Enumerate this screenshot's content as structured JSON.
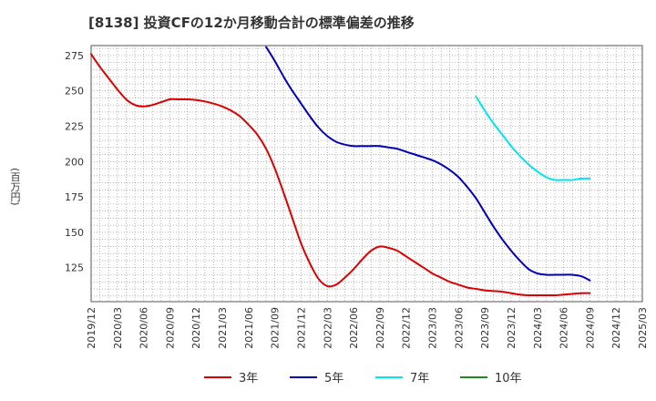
{
  "header": {
    "title": "[8138]  投資CFの12か月移動合計の標準偏差の推移"
  },
  "chart_data": {
    "type": "line",
    "title": "[8138]  投資CFの12か月移動合計の標準偏差の推移",
    "ylabel": "(百万円)",
    "xlabel": "",
    "ylim": [
      101,
      282
    ],
    "yticks": [
      125,
      150,
      175,
      200,
      225,
      250,
      275
    ],
    "x_ticks": [
      "2019/12",
      "2020/03",
      "2020/06",
      "2020/09",
      "2020/12",
      "2021/03",
      "2021/06",
      "2021/09",
      "2021/12",
      "2022/03",
      "2022/06",
      "2022/09",
      "2022/12",
      "2023/03",
      "2023/06",
      "2023/09",
      "2023/12",
      "2024/03",
      "2024/06",
      "2024/09",
      "2024/12",
      "2025/03"
    ],
    "grid": true,
    "legend_position": "bottom",
    "series": [
      {
        "name": "3年",
        "color": "#dd0000",
        "points": [
          [
            "2019/12",
            276
          ],
          [
            "2020/01",
            267
          ],
          [
            "2020/02",
            259
          ],
          [
            "2020/03",
            251
          ],
          [
            "2020/04",
            244
          ],
          [
            "2020/05",
            240
          ],
          [
            "2020/06",
            239
          ],
          [
            "2020/07",
            240
          ],
          [
            "2020/08",
            242
          ],
          [
            "2020/09",
            244
          ],
          [
            "2020/10",
            244
          ],
          [
            "2020/11",
            244
          ],
          [
            "2020/12",
            243.5
          ],
          [
            "2021/01",
            242.5
          ],
          [
            "2021/02",
            241
          ],
          [
            "2021/03",
            239
          ],
          [
            "2021/04",
            236
          ],
          [
            "2021/05",
            232
          ],
          [
            "2021/06",
            226
          ],
          [
            "2021/07",
            219
          ],
          [
            "2021/08",
            209
          ],
          [
            "2021/09",
            195
          ],
          [
            "2021/10",
            178
          ],
          [
            "2021/11",
            160
          ],
          [
            "2021/12",
            142
          ],
          [
            "2022/01",
            128
          ],
          [
            "2022/02",
            117
          ],
          [
            "2022/03",
            112
          ],
          [
            "2022/04",
            113
          ],
          [
            "2022/05",
            118
          ],
          [
            "2022/06",
            124
          ],
          [
            "2022/07",
            131
          ],
          [
            "2022/08",
            137
          ],
          [
            "2022/09",
            140
          ],
          [
            "2022/10",
            139
          ],
          [
            "2022/11",
            137
          ],
          [
            "2022/12",
            133
          ],
          [
            "2023/01",
            129
          ],
          [
            "2023/02",
            125
          ],
          [
            "2023/03",
            121
          ],
          [
            "2023/04",
            118
          ],
          [
            "2023/05",
            115
          ],
          [
            "2023/06",
            113
          ],
          [
            "2023/07",
            111
          ],
          [
            "2023/08",
            110
          ],
          [
            "2023/09",
            109
          ],
          [
            "2023/10",
            108.5
          ],
          [
            "2023/11",
            108
          ],
          [
            "2023/12",
            107
          ],
          [
            "2024/01",
            106
          ],
          [
            "2024/02",
            105.5
          ],
          [
            "2024/03",
            105.5
          ],
          [
            "2024/04",
            105.5
          ],
          [
            "2024/05",
            105.5
          ],
          [
            "2024/06",
            106
          ],
          [
            "2024/07",
            106.5
          ],
          [
            "2024/08",
            107
          ],
          [
            "2024/09",
            107
          ]
        ]
      },
      {
        "name": "5年",
        "color": "#0000bb",
        "points": [
          [
            "2021/08",
            281
          ],
          [
            "2021/09",
            271
          ],
          [
            "2021/10",
            260
          ],
          [
            "2021/11",
            250
          ],
          [
            "2021/12",
            241
          ],
          [
            "2022/01",
            232
          ],
          [
            "2022/02",
            224
          ],
          [
            "2022/03",
            218
          ],
          [
            "2022/04",
            214
          ],
          [
            "2022/05",
            212
          ],
          [
            "2022/06",
            211
          ],
          [
            "2022/07",
            211
          ],
          [
            "2022/08",
            211
          ],
          [
            "2022/09",
            211
          ],
          [
            "2022/10",
            210
          ],
          [
            "2022/11",
            209
          ],
          [
            "2022/12",
            207
          ],
          [
            "2023/01",
            205
          ],
          [
            "2023/02",
            203
          ],
          [
            "2023/03",
            201
          ],
          [
            "2023/04",
            198
          ],
          [
            "2023/05",
            194
          ],
          [
            "2023/06",
            189
          ],
          [
            "2023/07",
            182
          ],
          [
            "2023/08",
            174
          ],
          [
            "2023/09",
            164
          ],
          [
            "2023/10",
            154
          ],
          [
            "2023/11",
            145
          ],
          [
            "2023/12",
            137
          ],
          [
            "2024/01",
            130
          ],
          [
            "2024/02",
            124
          ],
          [
            "2024/03",
            121
          ],
          [
            "2024/04",
            120
          ],
          [
            "2024/05",
            120
          ],
          [
            "2024/06",
            120
          ],
          [
            "2024/07",
            120
          ],
          [
            "2024/08",
            119
          ],
          [
            "2024/09",
            116
          ]
        ]
      },
      {
        "name": "7年",
        "color": "#00e5ee",
        "points": [
          [
            "2023/08",
            246
          ],
          [
            "2023/09",
            236
          ],
          [
            "2023/10",
            227
          ],
          [
            "2023/11",
            219
          ],
          [
            "2023/12",
            211
          ],
          [
            "2024/01",
            204
          ],
          [
            "2024/02",
            198
          ],
          [
            "2024/03",
            193
          ],
          [
            "2024/04",
            189
          ],
          [
            "2024/05",
            187
          ],
          [
            "2024/06",
            187
          ],
          [
            "2024/07",
            187
          ],
          [
            "2024/08",
            188
          ],
          [
            "2024/09",
            188
          ]
        ]
      },
      {
        "name": "10年",
        "color": "#228822",
        "points": []
      }
    ]
  }
}
